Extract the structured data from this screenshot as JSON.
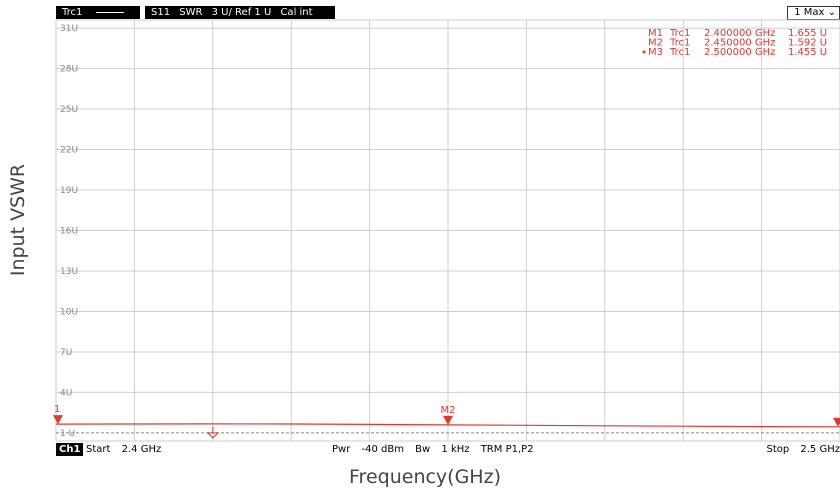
{
  "outer_ylabel": "Input VSWR",
  "outer_xlabel": "Frequency(GHz)",
  "topbar": {
    "trace_name": "Trc1",
    "param": "S11",
    "format": "SWR",
    "scale": "3 U/ Ref 1 U",
    "cal": "Cal int",
    "scale_button": "1 Max",
    "scale_button_icon": "chevron-down-icon"
  },
  "footbar": {
    "channel": "Ch1",
    "start_label": "Start",
    "start_value": "2.4 GHz",
    "pwr_label": "Pwr",
    "pwr_value": "-40 dBm",
    "bw_label": "Bw",
    "bw_value": "1 kHz",
    "trm": "TRM P1,P2",
    "stop_label": "Stop",
    "stop_value": "2.5 GHz"
  },
  "chart_data": {
    "type": "line",
    "title": "",
    "xlabel": "Frequency(GHz)",
    "ylabel": "Input VSWR",
    "xlim": [
      2.4,
      2.5
    ],
    "ylim": [
      0.4,
      31.6
    ],
    "grid": true,
    "legend": "none",
    "ytick_labels": [
      "1 U",
      "4U",
      "7U",
      "10U",
      "13U",
      "16U",
      "19U",
      "22U",
      "25U",
      "28U",
      "31U"
    ],
    "yticks": [
      1,
      4,
      7,
      10,
      13,
      16,
      19,
      22,
      25,
      28,
      31
    ],
    "series": [
      {
        "color": "#e8352d",
        "x": [
          2.4,
          2.41,
          2.42,
          2.43,
          2.44,
          2.45,
          2.46,
          2.47,
          2.48,
          2.49,
          2.5
        ],
        "values": [
          1.655,
          1.66,
          1.665,
          1.66,
          1.63,
          1.592,
          1.56,
          1.53,
          1.5,
          1.47,
          1.455
        ]
      }
    ],
    "reference_line": {
      "value": 1,
      "color": "#888888"
    },
    "markers": [
      {
        "name": "M1",
        "label": "M1",
        "trace": "Trc1",
        "x": 2.4,
        "y": 1.655,
        "freq_text": "2.400000 GHz",
        "value_text": "1.655 U",
        "active": false
      },
      {
        "name": "M2",
        "label": "M2",
        "trace": "Trc1",
        "x": 2.45,
        "y": 1.592,
        "freq_text": "2.450000 GHz",
        "value_text": "1.592 U",
        "active": false
      },
      {
        "name": "M3",
        "label": "M3",
        "trace": "Trc1",
        "x": 2.5,
        "y": 1.455,
        "freq_text": "2.500000 GHz",
        "value_text": "1.455 U",
        "active": true
      }
    ],
    "edge_marker_labels": {
      "left": "1",
      "right": ""
    },
    "ref_position_symbol": "ground-icon",
    "ref_position_x": 2.42
  }
}
